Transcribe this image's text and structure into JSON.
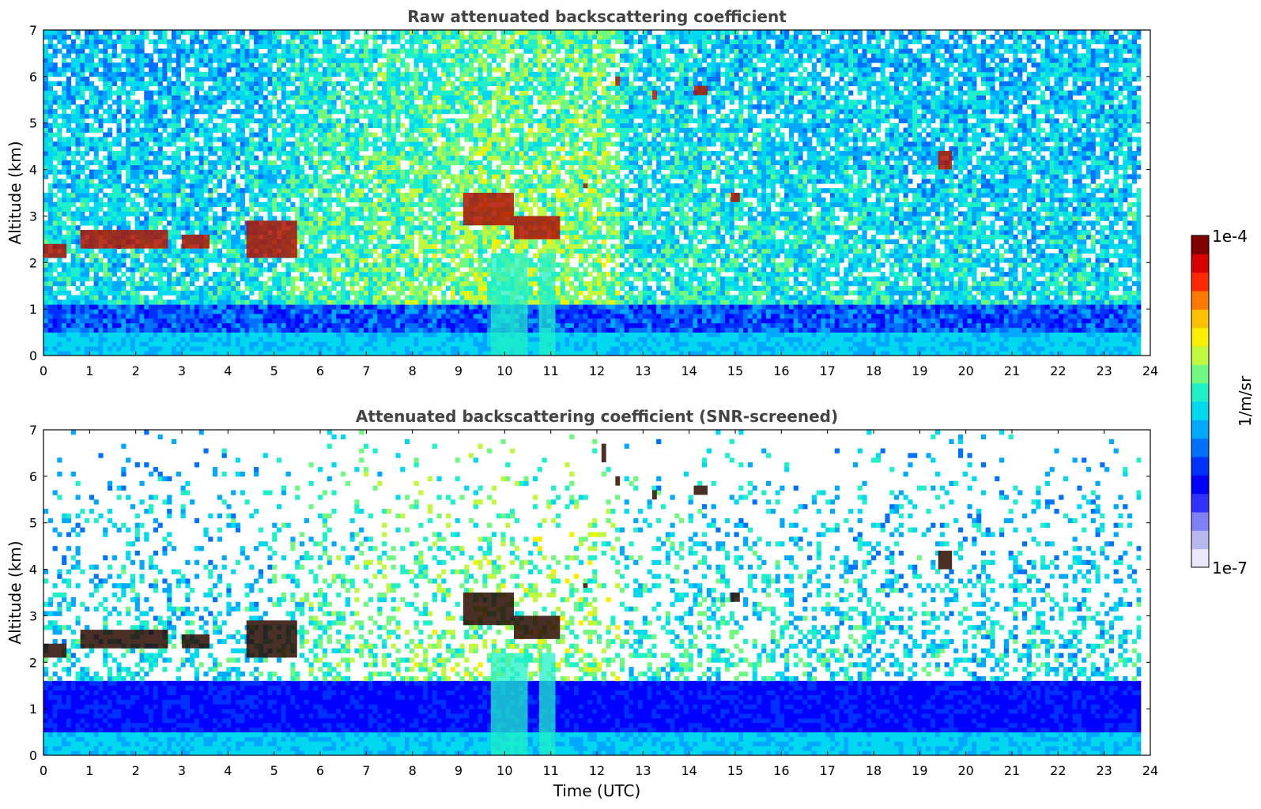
{
  "chart_data": [
    {
      "type": "heatmap",
      "title": "Raw attenuated backscattering coefficient",
      "ylabel": "Altitude (km)",
      "xlabel": "",
      "xlim": [
        0,
        24
      ],
      "ylim": [
        0,
        7
      ],
      "xticks": [
        "0",
        "1",
        "2",
        "3",
        "4",
        "5",
        "6",
        "7",
        "8",
        "9",
        "10",
        "11",
        "12",
        "13",
        "14",
        "15",
        "16",
        "17",
        "18",
        "19",
        "20",
        "21",
        "22",
        "23",
        "24"
      ],
      "yticks": [
        "0",
        "1",
        "2",
        "3",
        "4",
        "5",
        "6",
        "7"
      ],
      "data_end_time": 23.8,
      "screened": false,
      "cloud_features": [
        {
          "time": [
            0.0,
            0.5
          ],
          "altitude": [
            2.1,
            2.4
          ]
        },
        {
          "time": [
            0.8,
            2.7
          ],
          "altitude": [
            2.3,
            2.7
          ]
        },
        {
          "time": [
            3.0,
            3.6
          ],
          "altitude": [
            2.3,
            2.6
          ]
        },
        {
          "time": [
            4.4,
            5.5
          ],
          "altitude": [
            2.1,
            2.9
          ]
        },
        {
          "time": [
            9.1,
            10.2
          ],
          "altitude": [
            2.8,
            3.5
          ]
        },
        {
          "time": [
            10.2,
            11.2
          ],
          "altitude": [
            2.5,
            3.0
          ]
        },
        {
          "time": [
            11.7,
            11.8
          ],
          "altitude": [
            3.6,
            3.7
          ]
        },
        {
          "time": [
            12.4,
            12.5
          ],
          "altitude": [
            5.8,
            6.0
          ]
        },
        {
          "time": [
            13.2,
            13.3
          ],
          "altitude": [
            5.5,
            5.7
          ]
        },
        {
          "time": [
            14.1,
            14.4
          ],
          "altitude": [
            5.6,
            5.8
          ]
        },
        {
          "time": [
            14.9,
            15.1
          ],
          "altitude": [
            3.3,
            3.5
          ]
        },
        {
          "time": [
            19.4,
            19.7
          ],
          "altitude": [
            4.0,
            4.4
          ]
        }
      ]
    },
    {
      "type": "heatmap",
      "title": "Attenuated backscattering coefficient (SNR-screened)",
      "ylabel": "Altitude (km)",
      "xlabel": "Time (UTC)",
      "xlim": [
        0,
        24
      ],
      "ylim": [
        0,
        7
      ],
      "xticks": [
        "0",
        "1",
        "2",
        "3",
        "4",
        "5",
        "6",
        "7",
        "8",
        "9",
        "10",
        "11",
        "12",
        "13",
        "14",
        "15",
        "16",
        "17",
        "18",
        "19",
        "20",
        "21",
        "22",
        "23",
        "24"
      ],
      "yticks": [
        "0",
        "1",
        "2",
        "3",
        "4",
        "5",
        "6",
        "7"
      ],
      "data_end_time": 23.8,
      "screened": true,
      "cloud_features": [
        {
          "time": [
            0.0,
            0.5
          ],
          "altitude": [
            2.1,
            2.4
          ]
        },
        {
          "time": [
            0.8,
            2.7
          ],
          "altitude": [
            2.3,
            2.7
          ]
        },
        {
          "time": [
            3.0,
            3.6
          ],
          "altitude": [
            2.3,
            2.6
          ]
        },
        {
          "time": [
            4.4,
            5.5
          ],
          "altitude": [
            2.1,
            2.9
          ]
        },
        {
          "time": [
            9.1,
            10.2
          ],
          "altitude": [
            2.8,
            3.5
          ]
        },
        {
          "time": [
            10.2,
            11.2
          ],
          "altitude": [
            2.5,
            3.0
          ]
        },
        {
          "time": [
            11.7,
            11.8
          ],
          "altitude": [
            3.6,
            3.7
          ]
        },
        {
          "time": [
            12.1,
            12.2
          ],
          "altitude": [
            6.3,
            6.7
          ]
        },
        {
          "time": [
            12.4,
            12.5
          ],
          "altitude": [
            5.8,
            6.0
          ]
        },
        {
          "time": [
            13.2,
            13.3
          ],
          "altitude": [
            5.5,
            5.7
          ]
        },
        {
          "time": [
            14.1,
            14.4
          ],
          "altitude": [
            5.6,
            5.8
          ]
        },
        {
          "time": [
            14.9,
            15.1
          ],
          "altitude": [
            3.3,
            3.5
          ]
        },
        {
          "time": [
            19.4,
            19.7
          ],
          "altitude": [
            4.0,
            4.4
          ]
        }
      ]
    }
  ],
  "colorbar": {
    "label": "1/m/sr",
    "max_label": "1e-4",
    "min_label": "1e-7",
    "colors": [
      "#e8e8f8",
      "#b8b8f0",
      "#8080f8",
      "#3030ff",
      "#0000ff",
      "#0030ff",
      "#0070ff",
      "#00a8ff",
      "#00d8f0",
      "#20f0c8",
      "#70f880",
      "#c0f840",
      "#f8f000",
      "#ffc000",
      "#ff7800",
      "#ff2800",
      "#d80000",
      "#800000"
    ]
  }
}
